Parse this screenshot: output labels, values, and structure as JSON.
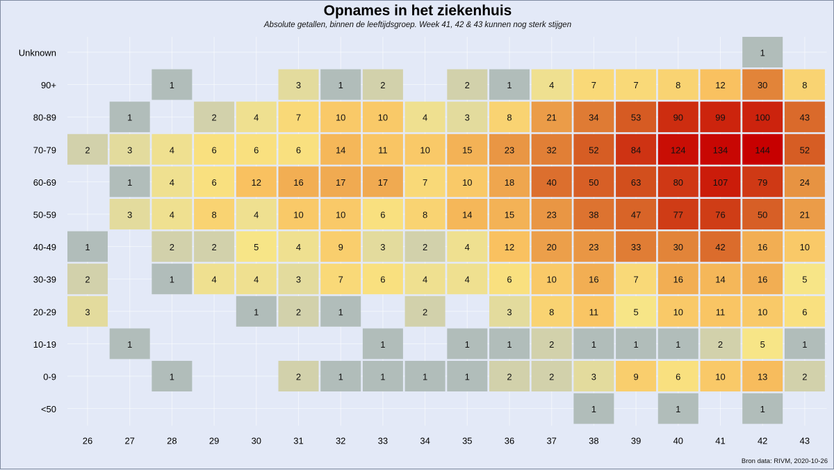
{
  "chart_data": {
    "type": "heatmap",
    "title": "Opnames in het ziekenhuis",
    "subtitle": "Absolute getallen, binnen de leeftijdsgroep. Week 41, 42 & 43 kunnen nog sterk stijgen",
    "xlabel": "",
    "ylabel": "",
    "x": [
      "26",
      "27",
      "28",
      "29",
      "30",
      "31",
      "32",
      "33",
      "34",
      "35",
      "36",
      "37",
      "38",
      "39",
      "40",
      "41",
      "42",
      "43"
    ],
    "y": [
      "Unknown",
      "90+",
      "80-89",
      "70-79",
      "60-69",
      "50-59",
      "40-49",
      "30-39",
      "20-29",
      "10-19",
      "0-9",
      "<50"
    ],
    "values": [
      [
        null,
        null,
        null,
        null,
        null,
        null,
        null,
        null,
        null,
        null,
        null,
        null,
        null,
        null,
        null,
        null,
        1,
        null
      ],
      [
        null,
        null,
        1,
        null,
        null,
        3,
        1,
        2,
        null,
        2,
        1,
        4,
        7,
        7,
        8,
        12,
        30,
        8
      ],
      [
        null,
        1,
        null,
        2,
        4,
        7,
        10,
        10,
        4,
        3,
        8,
        21,
        34,
        53,
        90,
        99,
        100,
        43
      ],
      [
        2,
        3,
        4,
        6,
        6,
        6,
        14,
        11,
        10,
        15,
        23,
        32,
        52,
        84,
        124,
        134,
        144,
        52
      ],
      [
        null,
        1,
        4,
        6,
        12,
        16,
        17,
        17,
        7,
        10,
        18,
        40,
        50,
        63,
        80,
        107,
        79,
        24
      ],
      [
        null,
        3,
        4,
        8,
        4,
        10,
        10,
        6,
        8,
        14,
        15,
        23,
        38,
        47,
        77,
        76,
        50,
        21
      ],
      [
        1,
        null,
        2,
        2,
        5,
        4,
        9,
        3,
        2,
        4,
        12,
        20,
        23,
        33,
        30,
        42,
        16,
        10
      ],
      [
        2,
        null,
        1,
        4,
        4,
        3,
        7,
        6,
        4,
        4,
        6,
        10,
        16,
        7,
        16,
        14,
        16,
        5
      ],
      [
        3,
        null,
        null,
        null,
        1,
        2,
        1,
        null,
        2,
        null,
        3,
        8,
        11,
        5,
        10,
        11,
        10,
        6
      ],
      [
        null,
        1,
        null,
        null,
        null,
        null,
        null,
        1,
        null,
        1,
        1,
        2,
        1,
        1,
        1,
        2,
        5,
        1
      ],
      [
        null,
        null,
        1,
        null,
        null,
        2,
        1,
        1,
        1,
        1,
        2,
        2,
        3,
        9,
        6,
        10,
        13,
        2
      ],
      [
        null,
        null,
        null,
        null,
        null,
        null,
        null,
        null,
        null,
        null,
        null,
        null,
        1,
        null,
        1,
        null,
        1,
        null
      ]
    ],
    "color_scale": [
      "#b1bdba",
      "#d9d5a8",
      "#f9e685",
      "#f9c160",
      "#e48a3c",
      "#d24f1d",
      "#c70000"
    ],
    "grid": true,
    "legend": "none"
  },
  "source_note": "Bron data: RIVM,  2020-10-26"
}
